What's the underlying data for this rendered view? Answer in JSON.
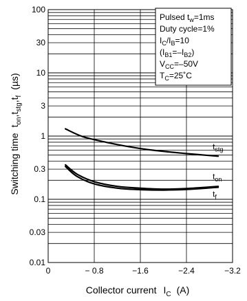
{
  "chart_data": {
    "type": "line",
    "x_axis": {
      "label": "Collector current",
      "symbol_main": "I",
      "symbol_sub": "C",
      "unit": "(A)",
      "range": [
        0,
        -3.2
      ],
      "ticks": [
        "0",
        "− 0.8",
        "−1.6",
        "−2.4",
        "−3.2"
      ],
      "tick_values": [
        0,
        -0.8,
        -1.6,
        -2.4,
        -3.2
      ]
    },
    "y_axis": {
      "label_prefix": "Switching time",
      "scale": "log",
      "range": [
        0.01,
        100
      ],
      "ticks": [
        "100",
        "30",
        "10",
        "3",
        "1",
        "0.3",
        "0.1",
        "0.03",
        "0.01"
      ],
      "tick_values": [
        100,
        30,
        10,
        3,
        1,
        0.3,
        0.1,
        0.03,
        0.01
      ]
    },
    "grid": true,
    "conditions": {
      "line1": "Pulsed t",
      "line1_sub": "w",
      "line1_tail": "=1ms",
      "line2": "Duty cycle=1%",
      "line3_a": "I",
      "line3_a_sub": "C",
      "line3_b": "/I",
      "line3_b_sub": "B",
      "line3_tail": "=10",
      "line4_a": "(I",
      "line4_a_sub": "B1",
      "line4_b": "=–I",
      "line4_b_sub": "B2",
      "line4_tail": ")",
      "line5_a": "V",
      "line5_a_sub": "CC",
      "line5_tail": "=–50V",
      "line6_a": "T",
      "line6_a_sub": "C",
      "line6_tail": "=25˚C"
    },
    "series": [
      {
        "name": "t_stg",
        "label_main": "t",
        "label_sub": "stg",
        "x": [
          -0.3,
          -0.6,
          -1.0,
          -1.4,
          -1.8,
          -2.2,
          -2.6,
          -2.95
        ],
        "y": [
          1.3,
          0.98,
          0.8,
          0.68,
          0.6,
          0.55,
          0.51,
          0.48
        ]
      },
      {
        "name": "t_on",
        "label_main": "t",
        "label_sub": "on",
        "x": [
          -0.3,
          -0.5,
          -0.8,
          -1.2,
          -1.6,
          -2.0,
          -2.4,
          -2.95
        ],
        "y": [
          0.35,
          0.25,
          0.19,
          0.16,
          0.15,
          0.145,
          0.148,
          0.16
        ]
      },
      {
        "name": "t_f",
        "label_main": "t",
        "label_sub": "f",
        "x": [
          -0.3,
          -0.5,
          -0.8,
          -1.2,
          -1.6,
          -2.0,
          -2.4,
          -2.95
        ],
        "y": [
          0.33,
          0.23,
          0.175,
          0.15,
          0.142,
          0.14,
          0.143,
          0.155
        ]
      }
    ]
  }
}
